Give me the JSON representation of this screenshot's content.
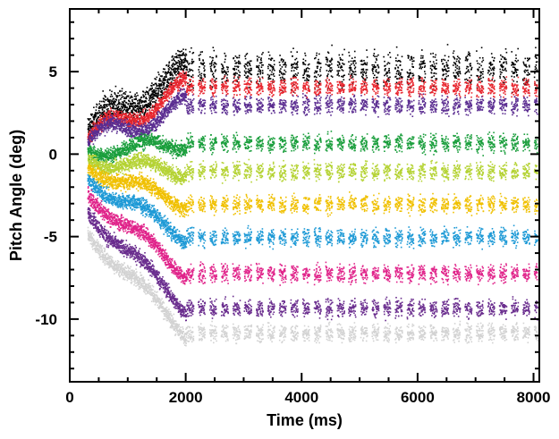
{
  "chart_data": {
    "type": "scatter",
    "title": "",
    "xlabel": "Time (ms)",
    "ylabel": "Pitch Angle (deg)",
    "xlim": [
      0,
      8100
    ],
    "ylim": [
      -13.8,
      8.8
    ],
    "x_ticks": [
      0,
      2000,
      4000,
      6000,
      8000
    ],
    "y_ticks": [
      5,
      0,
      -5,
      -10
    ],
    "x_tick_labels": [
      "0",
      "2000",
      "4000",
      "6000",
      "8000"
    ],
    "y_tick_labels": [
      "5",
      "0",
      "-5",
      "-10"
    ],
    "grid": false,
    "legend": "none",
    "x_range_of_data": [
      300,
      8050
    ],
    "transition_time": 2000,
    "series": [
      {
        "color": "#000000",
        "start_value": 1.5,
        "settled_value": 5.2,
        "spread": 1.4
      },
      {
        "color": "#e8262f",
        "start_value": 1.0,
        "settled_value": 4.1,
        "spread": 0.7
      },
      {
        "color": "#5b2d91",
        "start_value": 0.8,
        "settled_value": 3.0,
        "spread": 0.7
      },
      {
        "color": "#1a9e3c",
        "start_value": 0.2,
        "settled_value": 0.7,
        "spread": 0.7
      },
      {
        "color": "#b5d334",
        "start_value": -0.3,
        "settled_value": -1.0,
        "spread": 0.7
      },
      {
        "color": "#f0c000",
        "start_value": -0.8,
        "settled_value": -3.0,
        "spread": 0.7
      },
      {
        "color": "#1e9ad6",
        "start_value": -1.5,
        "settled_value": -5.0,
        "spread": 0.7
      },
      {
        "color": "#e0248a",
        "start_value": -2.4,
        "settled_value": -7.2,
        "spread": 0.7
      },
      {
        "color": "#6a2d8e",
        "start_value": -3.5,
        "settled_value": -9.3,
        "spread": 0.7
      },
      {
        "color": "#d3d3d3",
        "start_value": -4.8,
        "settled_value": -10.8,
        "spread": 0.7
      }
    ]
  }
}
